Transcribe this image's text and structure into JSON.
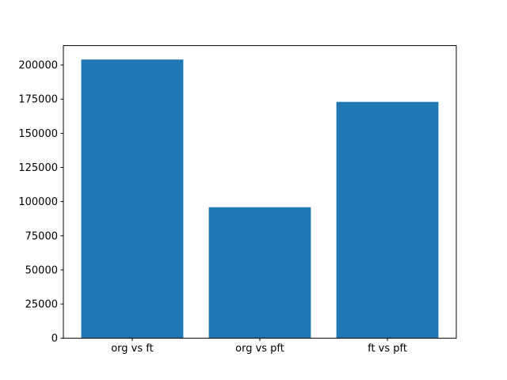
{
  "figure": {
    "background": "#ffffff"
  },
  "chart_data": {
    "type": "bar",
    "categories": [
      "org vs ft",
      "org vs pft",
      "ft vs pft"
    ],
    "values": [
      204000,
      95900,
      173000
    ],
    "title": "",
    "xlabel": "",
    "ylabel": "",
    "ylim": [
      0,
      214200
    ],
    "yticks": [
      0,
      25000,
      50000,
      75000,
      100000,
      125000,
      150000,
      175000,
      200000
    ],
    "bar_color": "#1f77b4",
    "axis_color": "#000000",
    "grid": false,
    "legend": null
  }
}
